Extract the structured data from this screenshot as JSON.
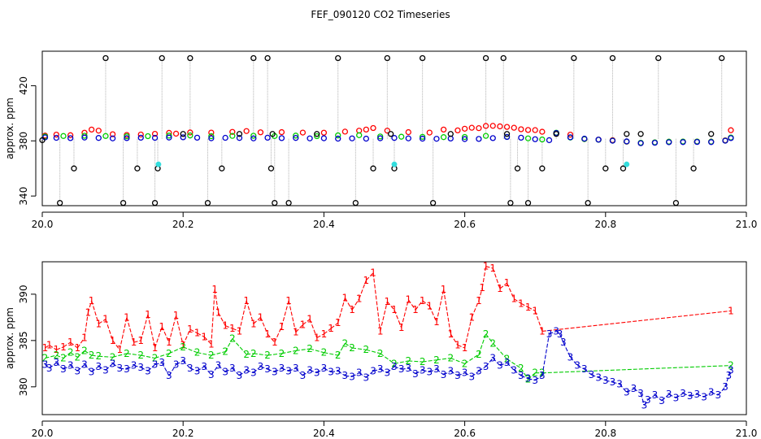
{
  "title": "FEF_090120  CO2 Timeseries",
  "colors": {
    "ch1": "#ff0000",
    "ch2": "#00cc00",
    "ch3": "#0000cc",
    "black": "#000000",
    "cyan": "#33dddd",
    "line_gray": "#b0b0b0"
  },
  "chart_data": [
    {
      "type": "scatter",
      "ylabel": "approx. ppm",
      "xlim": [
        20.0,
        21.0
      ],
      "ylim": [
        333,
        445
      ],
      "x_ticks": [
        {
          "value": 20.0,
          "label": "20.0"
        },
        {
          "value": 20.2,
          "label": "20.2"
        },
        {
          "value": 20.4,
          "label": "20.4"
        },
        {
          "value": 20.6,
          "label": "20.6"
        },
        {
          "value": 20.8,
          "label": "20.8"
        },
        {
          "value": 21.0,
          "label": "21.0"
        }
      ],
      "y_ticks": [
        {
          "value": 340,
          "label": "340"
        },
        {
          "value": 380,
          "label": "380"
        },
        {
          "value": 420,
          "label": "420"
        }
      ],
      "series": [
        {
          "color_key": "ch1",
          "x": [
            20.004,
            20.02,
            20.04,
            20.06,
            20.07,
            20.08,
            20.1,
            20.12,
            20.14,
            20.16,
            20.18,
            20.19,
            20.21,
            20.24,
            20.27,
            20.29,
            20.31,
            20.34,
            20.37,
            20.4,
            20.43,
            20.45,
            20.46,
            20.47,
            20.49,
            20.52,
            20.55,
            20.57,
            20.59,
            20.6,
            20.61,
            20.62,
            20.63,
            20.64,
            20.65,
            20.66,
            20.67,
            20.68,
            20.69,
            20.7,
            20.71,
            20.73,
            20.75,
            20.77,
            20.79,
            20.81,
            20.83,
            20.85,
            20.87,
            20.89,
            20.91,
            20.93,
            20.95,
            20.97,
            20.978
          ],
          "y": [
            383.8,
            384.5,
            384.1,
            385.9,
            388.2,
            387.4,
            384.8,
            384.3,
            384.6,
            385.1,
            385.8,
            385.2,
            386.1,
            386.0,
            386.5,
            387.1,
            386.2,
            386.3,
            386.0,
            385.9,
            386.7,
            387.4,
            388.2,
            389.3,
            387.4,
            386.3,
            386.0,
            388.2,
            387.6,
            388.8,
            389.5,
            389.2,
            390.8,
            390.9,
            390.5,
            390.1,
            389.5,
            388.4,
            387.9,
            387.8,
            386.6,
            385.7,
            384.5,
            381.3,
            380.9,
            380.5,
            379.4,
            378.4,
            378.8,
            379.3,
            379.4,
            379.5,
            379.4,
            380.4,
            387.7
          ]
        },
        {
          "color_key": "ch2",
          "x": [
            20.004,
            20.03,
            20.06,
            20.09,
            20.12,
            20.15,
            20.18,
            20.21,
            20.24,
            20.27,
            20.3,
            20.33,
            20.36,
            20.39,
            20.42,
            20.45,
            20.48,
            20.51,
            20.54,
            20.57,
            20.6,
            20.63,
            20.66,
            20.69,
            20.71,
            20.73,
            20.75,
            20.77,
            20.79,
            20.81,
            20.83,
            20.85,
            20.87,
            20.89,
            20.91,
            20.93,
            20.95,
            20.97,
            20.978
          ],
          "y": [
            383.2,
            383.5,
            383.7,
            383.5,
            383.3,
            383.4,
            383.8,
            383.9,
            383.4,
            383.6,
            383.7,
            383.5,
            383.8,
            383.4,
            384.0,
            384.1,
            383.2,
            383.0,
            382.9,
            382.7,
            382.8,
            383.6,
            382.9,
            381.8,
            381.0,
            385.9,
            382.4,
            381.3,
            380.8,
            380.2,
            379.5,
            378.6,
            378.9,
            379.4,
            379.5,
            379.5,
            379.4,
            380.2,
            382.4
          ]
        },
        {
          "color_key": "ch3",
          "x": [
            20.004,
            20.02,
            20.04,
            20.06,
            20.08,
            20.1,
            20.12,
            20.14,
            20.16,
            20.18,
            20.2,
            20.22,
            20.24,
            20.26,
            20.28,
            20.3,
            20.32,
            20.34,
            20.36,
            20.38,
            20.4,
            20.42,
            20.44,
            20.46,
            20.48,
            20.5,
            20.52,
            20.54,
            20.56,
            20.58,
            20.6,
            20.62,
            20.64,
            20.66,
            20.68,
            20.7,
            20.72,
            20.73,
            20.75,
            20.77,
            20.79,
            20.81,
            20.83,
            20.85,
            20.87,
            20.89,
            20.91,
            20.93,
            20.95,
            20.97,
            20.978
          ],
          "y": [
            382.5,
            382.2,
            382.0,
            382.4,
            382.1,
            381.8,
            382.0,
            382.3,
            382.2,
            382.4,
            382.6,
            382.3,
            381.9,
            382.2,
            382.1,
            381.8,
            382.3,
            382.0,
            382.1,
            381.8,
            381.9,
            381.6,
            381.8,
            381.6,
            381.9,
            382.1,
            381.8,
            381.6,
            381.5,
            381.7,
            381.3,
            381.4,
            382.0,
            382.8,
            382.3,
            381.2,
            380.5,
            385.7,
            382.6,
            381.6,
            380.9,
            380.1,
            379.6,
            378.3,
            378.6,
            379.0,
            379.1,
            379.2,
            379.1,
            380.1,
            382.0
          ]
        },
        {
          "color_key": "black",
          "x": [
            20.0,
            20.025,
            20.045,
            20.09,
            20.115,
            20.135,
            20.16,
            20.164,
            20.17,
            20.2,
            20.21,
            20.235,
            20.255,
            20.28,
            20.3,
            20.32,
            20.325,
            20.327,
            20.33,
            20.35,
            20.39,
            20.42,
            20.445,
            20.47,
            20.49,
            20.495,
            20.5,
            20.54,
            20.555,
            20.58,
            20.63,
            20.655,
            20.66,
            20.665,
            20.675,
            20.69,
            20.71,
            20.73,
            20.755,
            20.775,
            20.8,
            20.81,
            20.825,
            20.83,
            20.85,
            20.875,
            20.9,
            20.925,
            20.95,
            20.965
          ],
          "y": [
            380.5,
            335.0,
            360.0,
            440.0,
            335.0,
            360.0,
            335.0,
            360.0,
            440.0,
            385.0,
            440.0,
            335.0,
            360.0,
            385.0,
            440.0,
            440.0,
            360.0,
            385.0,
            335.0,
            335.0,
            385.0,
            440.0,
            335.0,
            360.0,
            440.0,
            385.0,
            360.0,
            440.0,
            335.0,
            385.0,
            440.0,
            440.0,
            385.0,
            335.0,
            360.0,
            335.0,
            360.0,
            385.0,
            440.0,
            335.0,
            360.0,
            440.0,
            360.0,
            385.0,
            385.0,
            440.0,
            335.0,
            360.0,
            385.0,
            440.0
          ]
        },
        {
          "color_key": "cyan",
          "x": [
            20.165,
            20.5,
            20.83
          ],
          "y": [
            363.0,
            363.0,
            363.0
          ]
        }
      ]
    },
    {
      "type": "line",
      "ylabel": "approx. ppm",
      "xlim": [
        20.0,
        21.0
      ],
      "ylim": [
        377.0,
        393.5
      ],
      "x_ticks": [
        {
          "value": 20.0,
          "label": "20.0"
        },
        {
          "value": 20.2,
          "label": "20.2"
        },
        {
          "value": 20.4,
          "label": "20.4"
        },
        {
          "value": 20.6,
          "label": "20.6"
        },
        {
          "value": 20.8,
          "label": "20.8"
        },
        {
          "value": 21.0,
          "label": "21.0"
        }
      ],
      "y_ticks": [
        {
          "value": 380,
          "label": "380"
        },
        {
          "value": 385,
          "label": "385"
        },
        {
          "value": 390,
          "label": "390"
        }
      ],
      "series": [
        {
          "marker": "1",
          "color_key": "ch1",
          "x": [
            20.004,
            20.01,
            20.02,
            20.03,
            20.04,
            20.05,
            20.06,
            20.065,
            20.07,
            20.08,
            20.09,
            20.1,
            20.11,
            20.12,
            20.13,
            20.14,
            20.15,
            20.16,
            20.17,
            20.18,
            20.19,
            20.2,
            20.21,
            20.22,
            20.23,
            20.24,
            20.245,
            20.25,
            20.26,
            20.27,
            20.28,
            20.29,
            20.3,
            20.31,
            20.32,
            20.33,
            20.34,
            20.35,
            20.36,
            20.37,
            20.38,
            20.39,
            20.4,
            20.41,
            20.42,
            20.43,
            20.44,
            20.45,
            20.46,
            20.47,
            20.48,
            20.49,
            20.5,
            20.51,
            20.52,
            20.53,
            20.54,
            20.55,
            20.56,
            20.57,
            20.58,
            20.59,
            20.6,
            20.61,
            20.62,
            20.625,
            20.63,
            20.64,
            20.65,
            20.66,
            20.67,
            20.68,
            20.69,
            20.7,
            20.71,
            20.978
          ],
          "y": [
            384.2,
            384.5,
            384.0,
            384.3,
            384.8,
            384.2,
            385.3,
            388.0,
            389.3,
            386.8,
            387.3,
            385.0,
            384.0,
            387.5,
            384.8,
            385.0,
            387.8,
            384.2,
            386.5,
            384.8,
            387.7,
            384.5,
            386.2,
            385.8,
            385.4,
            384.6,
            390.5,
            388.0,
            386.6,
            386.3,
            386.0,
            389.3,
            386.8,
            387.5,
            385.7,
            384.8,
            386.5,
            389.3,
            385.9,
            386.7,
            387.3,
            385.3,
            385.7,
            386.3,
            386.9,
            389.6,
            388.3,
            389.5,
            391.5,
            392.3,
            386.0,
            389.2,
            388.3,
            386.4,
            389.4,
            388.3,
            389.3,
            388.7,
            387.0,
            390.5,
            385.7,
            384.5,
            384.2,
            387.5,
            389.3,
            390.7,
            393.0,
            392.8,
            390.6,
            391.2,
            389.5,
            389.0,
            388.6,
            388.2,
            386.0,
            388.2
          ]
        },
        {
          "marker": "2",
          "color_key": "ch2",
          "x": [
            20.004,
            20.02,
            20.03,
            20.04,
            20.05,
            20.06,
            20.07,
            20.08,
            20.1,
            20.12,
            20.14,
            20.16,
            20.18,
            20.2,
            20.22,
            20.24,
            20.26,
            20.27,
            20.29,
            20.3,
            20.32,
            20.34,
            20.36,
            20.38,
            20.4,
            20.42,
            20.43,
            20.44,
            20.46,
            20.48,
            20.5,
            20.52,
            20.54,
            20.56,
            20.58,
            20.6,
            20.62,
            20.63,
            20.64,
            20.66,
            20.68,
            20.69,
            20.7,
            20.71,
            20.978
          ],
          "y": [
            383.1,
            383.4,
            383.1,
            383.7,
            383.2,
            383.9,
            383.4,
            383.3,
            383.2,
            383.6,
            383.4,
            383.1,
            383.6,
            384.3,
            383.7,
            383.4,
            383.8,
            385.2,
            383.5,
            383.6,
            383.4,
            383.6,
            383.9,
            384.1,
            383.7,
            383.4,
            384.7,
            384.2,
            384.0,
            383.6,
            382.5,
            382.8,
            382.7,
            382.9,
            383.1,
            382.5,
            383.5,
            385.7,
            384.7,
            383.0,
            382.0,
            380.8,
            381.5,
            381.5,
            382.3
          ]
        },
        {
          "marker": "3",
          "color_key": "ch3",
          "x": [
            20.004,
            20.01,
            20.02,
            20.03,
            20.04,
            20.05,
            20.06,
            20.07,
            20.08,
            20.09,
            20.1,
            20.11,
            20.12,
            20.13,
            20.14,
            20.15,
            20.16,
            20.17,
            20.18,
            20.19,
            20.2,
            20.21,
            20.22,
            20.23,
            20.24,
            20.25,
            20.26,
            20.27,
            20.28,
            20.29,
            20.3,
            20.31,
            20.32,
            20.33,
            20.34,
            20.35,
            20.36,
            20.37,
            20.38,
            20.39,
            20.4,
            20.41,
            20.42,
            20.43,
            20.44,
            20.45,
            20.46,
            20.47,
            20.48,
            20.49,
            20.5,
            20.51,
            20.52,
            20.53,
            20.54,
            20.55,
            20.56,
            20.57,
            20.58,
            20.59,
            20.6,
            20.61,
            20.62,
            20.63,
            20.64,
            20.65,
            20.66,
            20.67,
            20.68,
            20.69,
            20.7,
            20.71,
            20.72,
            20.73,
            20.735,
            20.74,
            20.75,
            20.76,
            20.77,
            20.78,
            20.79,
            20.8,
            20.81,
            20.82,
            20.83,
            20.84,
            20.85,
            20.855,
            20.86,
            20.87,
            20.88,
            20.89,
            20.9,
            20.91,
            20.92,
            20.93,
            20.94,
            20.95,
            20.96,
            20.97,
            20.975,
            20.978
          ],
          "y": [
            382.4,
            382.0,
            382.6,
            381.9,
            382.3,
            381.7,
            382.4,
            381.6,
            382.2,
            381.8,
            382.5,
            382.0,
            381.9,
            382.3,
            382.1,
            381.7,
            382.4,
            382.6,
            381.2,
            382.4,
            382.8,
            382.0,
            381.7,
            382.2,
            381.3,
            382.3,
            381.6,
            382.0,
            381.2,
            381.8,
            381.5,
            382.2,
            381.9,
            381.6,
            382.0,
            381.7,
            382.0,
            381.2,
            381.8,
            381.5,
            382.0,
            381.6,
            381.7,
            381.2,
            381.1,
            381.5,
            381.0,
            381.7,
            381.9,
            381.5,
            382.2,
            381.9,
            382.0,
            381.4,
            381.8,
            381.6,
            381.9,
            381.3,
            381.7,
            381.2,
            381.5,
            381.1,
            381.7,
            382.2,
            383.1,
            382.3,
            382.6,
            381.8,
            381.2,
            380.9,
            380.7,
            381.2,
            385.7,
            386.0,
            385.7,
            384.8,
            383.2,
            382.3,
            381.9,
            381.3,
            381.0,
            380.7,
            380.5,
            380.3,
            379.4,
            379.8,
            379.3,
            378.0,
            378.6,
            379.1,
            378.5,
            379.2,
            378.8,
            379.3,
            379.0,
            379.2,
            378.9,
            379.4,
            379.1,
            380.0,
            381.2,
            381.8
          ]
        }
      ]
    }
  ]
}
